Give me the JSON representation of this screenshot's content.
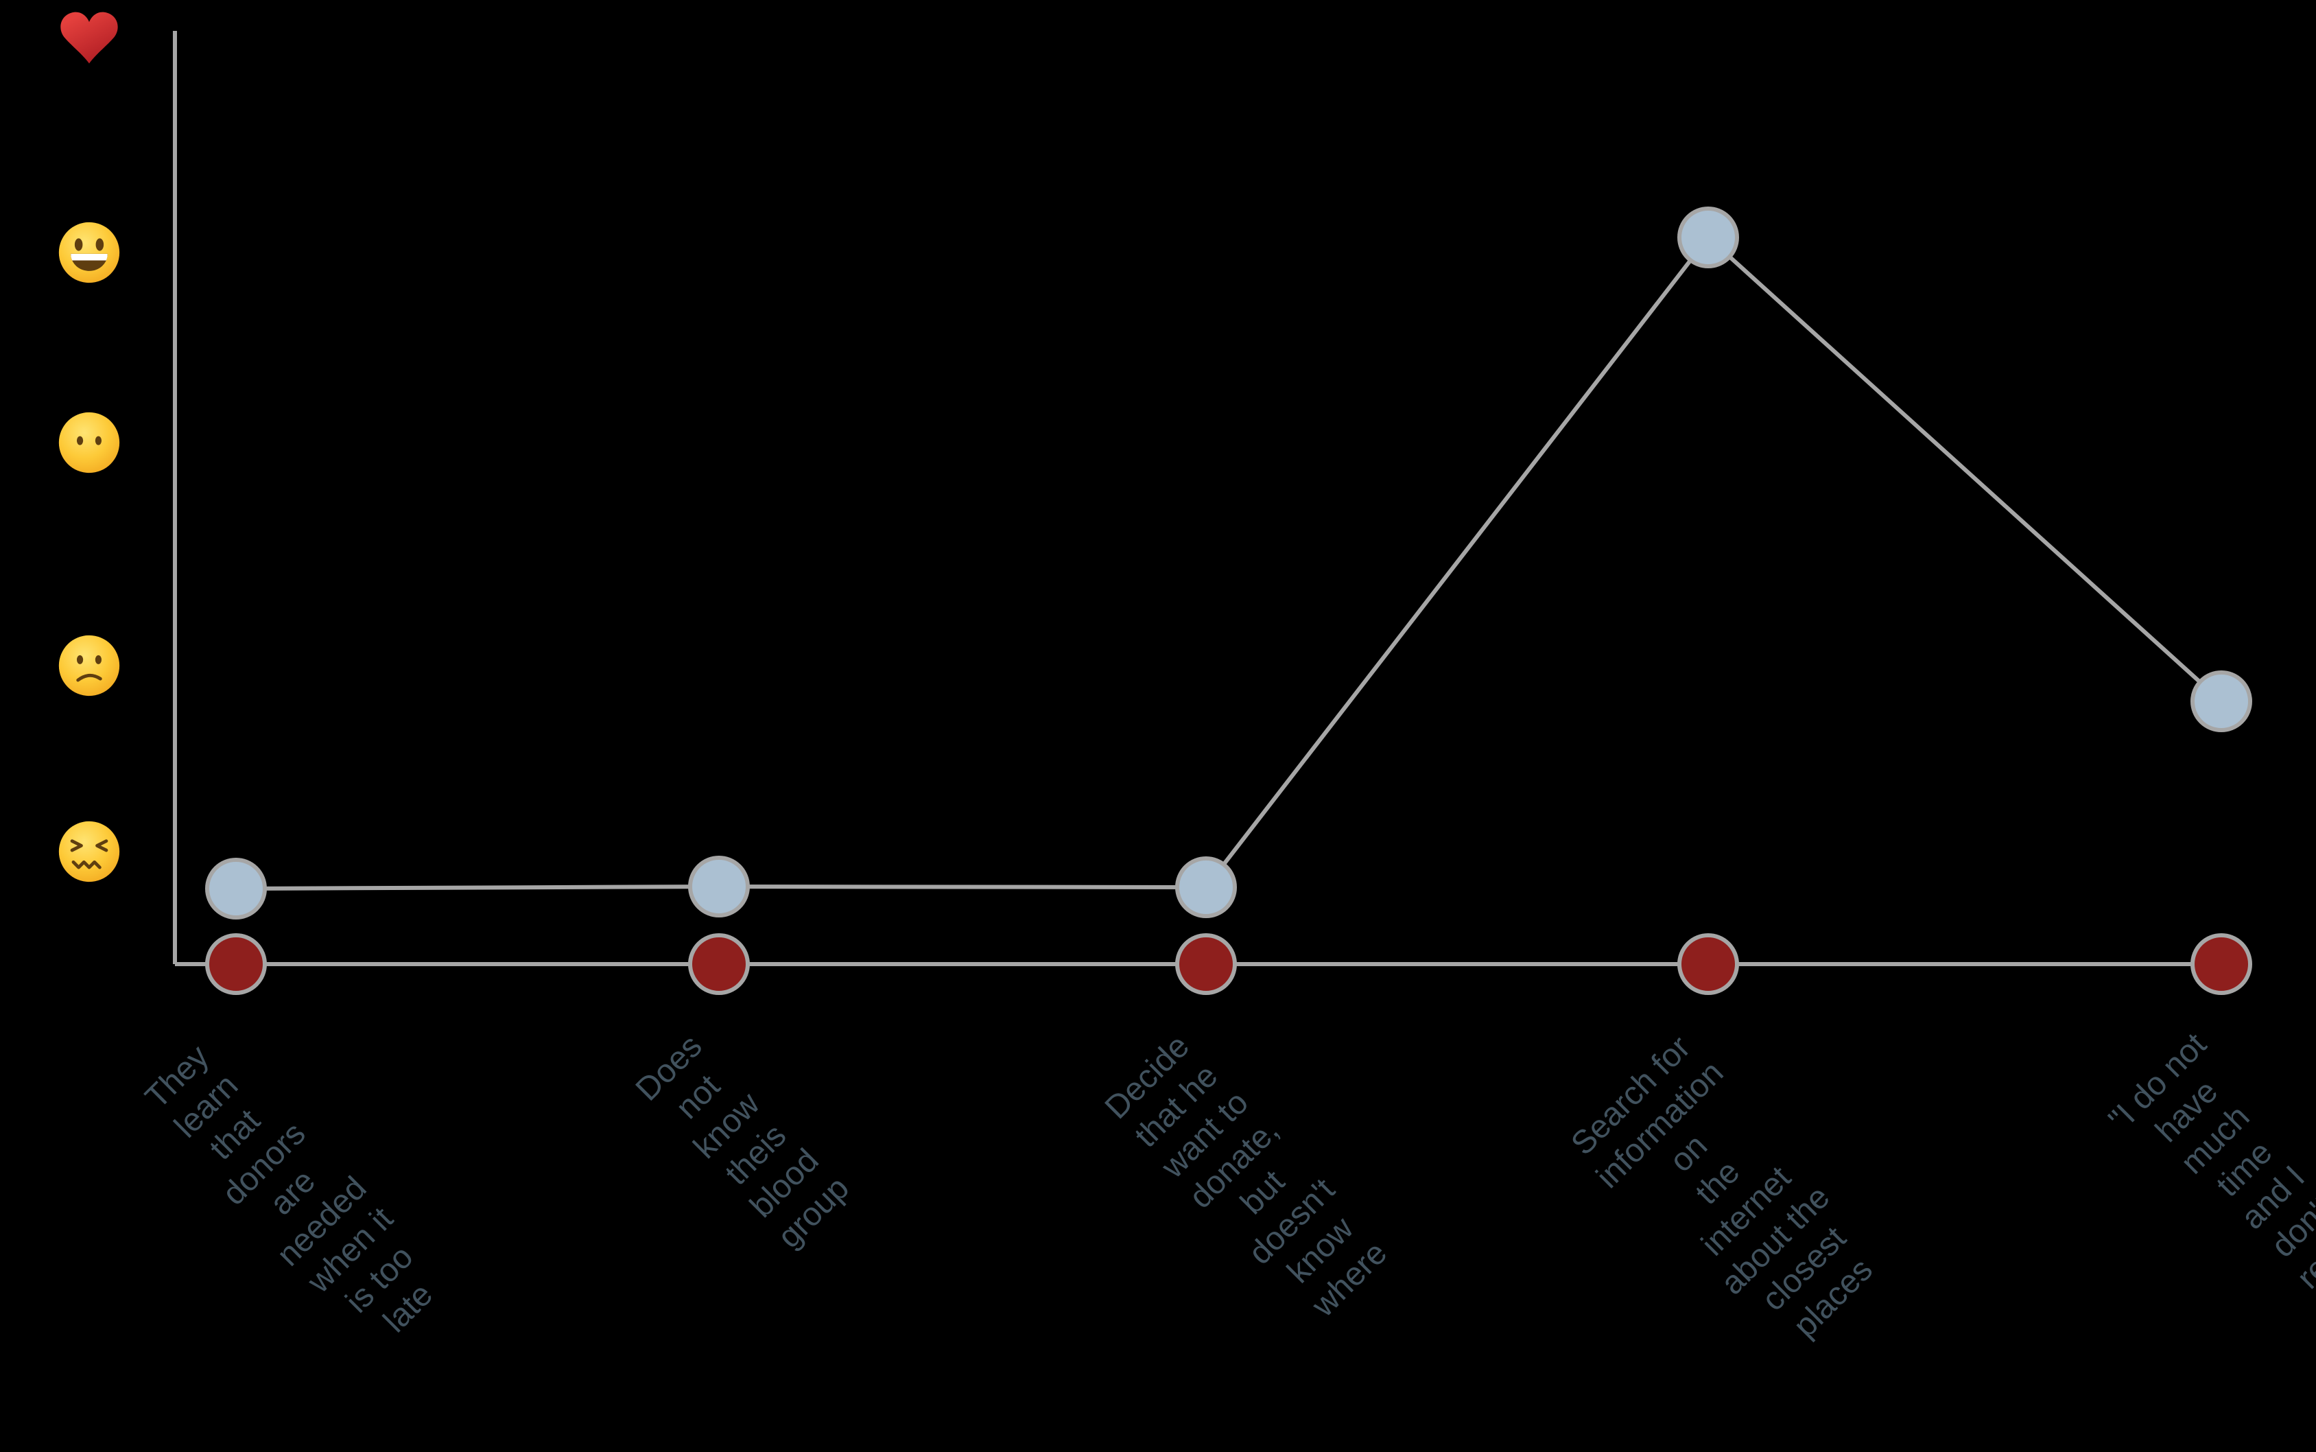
{
  "background": "#000000",
  "colors": {
    "axis_line": "#a6a6a6",
    "journey_dot_fill": "#abc0d2",
    "touchpoint_dot_fill": "#8e1f1d",
    "dot_stroke": "#a6a6a6",
    "label_text": "#41525e"
  },
  "chart_data": {
    "type": "line",
    "title": "",
    "description": "Emotional journey map of a blood donor: emoji mood scale on y-axis, journey steps on x-axis; gray line with light blue dots shows emotion level, dark red dots mark each step on the baseline.",
    "x_categories": [
      "They learn that\ndonors are needed\nwhen it is too late",
      "Does not know theis\nblood group",
      "Decide that he want to\ndonate, but doesn't\nknow where",
      "Search for information on\nthe internet about the\nclosest places",
      "\"I do not have much time\nand I don't really like\nneedles, so I can do it any\nother day.\""
    ],
    "y_axis": {
      "type": "emoji-scale",
      "ticks_top_to_bottom": [
        {
          "icon": "red-heart",
          "level": 5
        },
        {
          "icon": "grinning-face",
          "level": 4
        },
        {
          "icon": "face-without-mouth",
          "level": 3
        },
        {
          "icon": "confused-face",
          "level": 2
        },
        {
          "icon": "confounded-face",
          "level": 1
        }
      ]
    },
    "series": [
      {
        "name": "emotional-journey-line",
        "type": "line",
        "marker": "circle",
        "fill": "#abc0d2",
        "stroke": "#a6a6a6",
        "values_emoji_level": [
          1,
          1,
          1,
          4,
          2
        ]
      },
      {
        "name": "journey-touchpoints",
        "type": "scatter",
        "marker": "circle",
        "fill": "#8e1f1d",
        "stroke": "#a6a6a6",
        "values_emoji_level": [
          0,
          0,
          0,
          0,
          0
        ]
      }
    ],
    "legend": "none",
    "grid": "off",
    "pixel_geometry": {
      "axis_x": 255,
      "axis_top": 45,
      "baseline_y": 1405,
      "axis_right": 3238,
      "axis_stroke_width": 6,
      "category_x": [
        344,
        1048,
        1758,
        2490,
        3238
      ],
      "journey_y": [
        1295,
        1292,
        1293,
        346,
        1022
      ],
      "dot_radius": 42,
      "dot_stroke_width": 6,
      "emoji_cx": 130,
      "emoji_cy": [
        58,
        368,
        645,
        970,
        1241
      ],
      "emoji_size": 96,
      "label_anchor_top": 1492,
      "label_anchor_right_offset": 50
    }
  }
}
